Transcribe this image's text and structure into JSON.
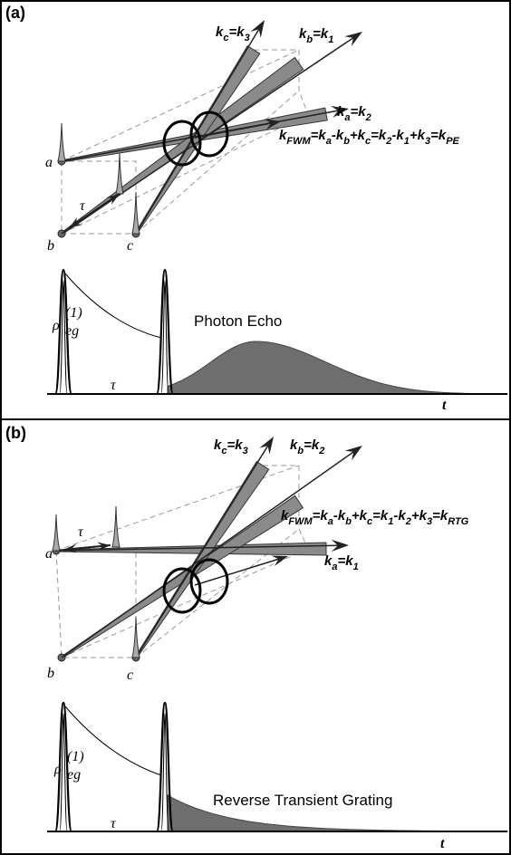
{
  "panels": [
    {
      "label": "(a)",
      "wave_vectors": [
        [
          {
            "text": "k",
            "sub": "c"
          },
          {
            "text": "=k",
            "sub": "3"
          }
        ],
        [
          {
            "text": "k",
            "sub": "b"
          },
          {
            "text": "=k",
            "sub": "1"
          }
        ],
        [
          {
            "text": "k",
            "sub": "FWM"
          },
          {
            "text": "=k",
            "sub": "a"
          },
          {
            "text": "-k",
            "sub": "b"
          },
          {
            "text": "+k",
            "sub": "c"
          },
          {
            "text": "=k",
            "sub": "2"
          },
          {
            "text": "-k",
            "sub": "1"
          },
          {
            "text": "+k",
            "sub": "3"
          },
          {
            "text": "=k",
            "sub": "PE"
          }
        ],
        [
          {
            "text": "k",
            "sub": "a"
          },
          {
            "text": "=k",
            "sub": "2"
          }
        ]
      ],
      "beam_labels": [
        "a",
        "b",
        "c"
      ],
      "delay_label": "τ",
      "coherence_label": {
        "base": "ρ",
        "sub": "eg",
        "sup": "(1)"
      },
      "delay_axis_label": "τ",
      "signal_label": "Photon Echo",
      "time_label": "t"
    },
    {
      "label": "(b)",
      "wave_vectors": [
        [
          {
            "text": "k",
            "sub": "c"
          },
          {
            "text": "=k",
            "sub": "3"
          }
        ],
        [
          {
            "text": "k",
            "sub": "b"
          },
          {
            "text": "=k",
            "sub": "2"
          }
        ],
        [
          {
            "text": "k",
            "sub": "FWM"
          },
          {
            "text": "=k",
            "sub": "a"
          },
          {
            "text": "-k",
            "sub": "b"
          },
          {
            "text": "+k",
            "sub": "c"
          },
          {
            "text": "=k",
            "sub": "1"
          },
          {
            "text": "-k",
            "sub": "2"
          },
          {
            "text": "+k",
            "sub": "3"
          },
          {
            "text": "=k",
            "sub": "RTG"
          }
        ],
        [
          {
            "text": "k",
            "sub": "a"
          },
          {
            "text": "=k",
            "sub": "1"
          }
        ]
      ],
      "beam_labels": [
        "a",
        "b",
        "c"
      ],
      "delay_label": "τ",
      "coherence_label": {
        "base": "ρ",
        "sub": "eg",
        "sup": "(1)"
      },
      "delay_axis_label": "τ",
      "signal_label": "Reverse Transient Grating",
      "time_label": "t"
    }
  ]
}
